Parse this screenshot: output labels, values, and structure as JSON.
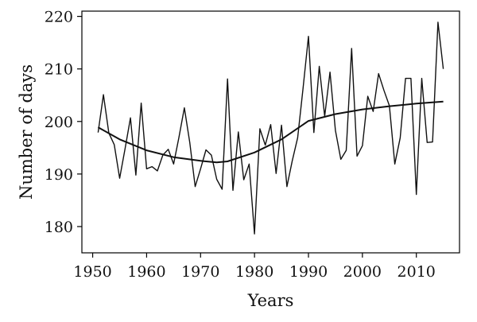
{
  "chart_data": {
    "type": "line",
    "title": "",
    "xlabel": "Years",
    "ylabel": "Number of days",
    "xlim": [
      1948,
      2018
    ],
    "ylim": [
      175,
      221
    ],
    "xticks": [
      1950,
      1960,
      1970,
      1980,
      1990,
      2000,
      2010
    ],
    "yticks": [
      180,
      190,
      200,
      210,
      220
    ],
    "grid": false,
    "legend": "none",
    "series": [
      {
        "x": [
          1951,
          1952,
          1953,
          1954,
          1955,
          1956,
          1957,
          1958,
          1959,
          1960,
          1961,
          1962,
          1963,
          1964,
          1965,
          1966,
          1967,
          1968,
          1969,
          1970,
          1971,
          1972,
          1973,
          1974,
          1975,
          1976,
          1977,
          1978,
          1979,
          1980,
          1981,
          1982,
          1983,
          1984,
          1985,
          1986,
          1987,
          1988,
          1989,
          1990,
          1991,
          1992,
          1993,
          1994,
          1995,
          1996,
          1997,
          1998,
          1999,
          2000,
          2001,
          2002,
          2003,
          2004,
          2005,
          2006,
          2007,
          2008,
          2009,
          2010,
          2011,
          2012,
          2013,
          2014,
          2015
        ],
        "values": [
          197.9,
          205.1,
          197.8,
          195.6,
          189.2,
          194.8,
          200.7,
          189.8,
          203.5,
          191.0,
          191.4,
          190.6,
          193.6,
          194.7,
          191.9,
          197.0,
          202.6,
          196.0,
          187.6,
          191.0,
          194.6,
          193.6,
          189.0,
          187.1,
          208.1,
          186.9,
          198.0,
          188.9,
          191.9,
          178.6,
          198.6,
          195.5,
          199.4,
          190.1,
          199.3,
          187.6,
          192.5,
          196.9,
          206.3,
          216.2,
          197.9,
          210.5,
          201.0,
          209.4,
          198.3,
          192.8,
          194.5,
          213.9,
          193.4,
          195.4,
          204.8,
          201.9,
          209.1,
          205.9,
          203.0,
          191.9,
          196.9,
          208.2,
          208.2,
          186.1,
          208.2,
          196.0,
          196.1,
          218.9,
          210.0
        ]
      },
      {
        "x": [
          1951,
          1955,
          1960,
          1965,
          1970,
          1973,
          1975,
          1980,
          1985,
          1990,
          1995,
          2000,
          2005,
          2010,
          2015
        ],
        "values": [
          198.9,
          196.6,
          194.5,
          193.2,
          192.5,
          192.2,
          192.4,
          194.1,
          196.6,
          200.1,
          201.4,
          202.3,
          202.9,
          203.4,
          203.8
        ]
      }
    ]
  }
}
